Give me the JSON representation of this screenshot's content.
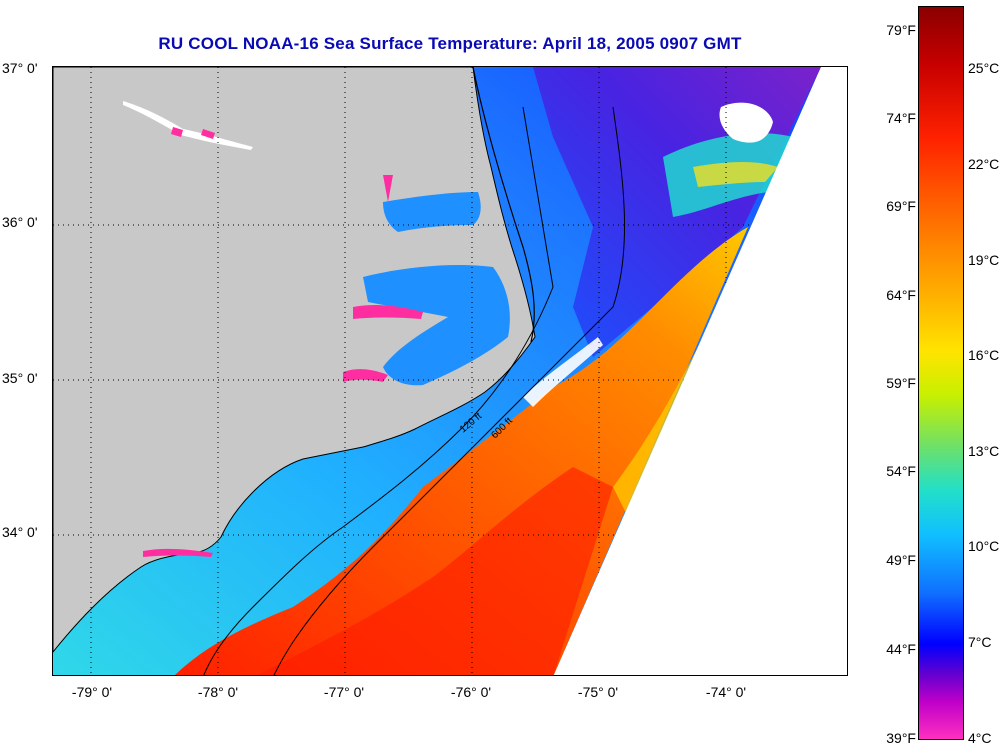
{
  "title": "RU COOL  NOAA-16  Sea Surface Temperature:  April 18, 2005 0907 GMT",
  "latitude_labels": [
    "37° 0'",
    "36° 0'",
    "35° 0'",
    "34° 0'"
  ],
  "longitude_labels": [
    "-79° 0'",
    "-78° 0'",
    "-77° 0'",
    "-76° 0'",
    "-75° 0'",
    "-74° 0'"
  ],
  "contour_labels": [
    "120 ft",
    "600 ft"
  ],
  "colorbar": {
    "fahrenheit": [
      "79°F",
      "74°F",
      "69°F",
      "64°F",
      "59°F",
      "54°F",
      "49°F",
      "44°F",
      "39°F"
    ],
    "celsius": [
      "25°C",
      "22°C",
      "19°C",
      "16°C",
      "13°C",
      "10°C",
      "7°C",
      "4°C"
    ]
  },
  "colors": {
    "land": "#c8c8c8",
    "title": "#0a0ab4",
    "warm": "#ff4500",
    "cool": "#1e90ff"
  }
}
